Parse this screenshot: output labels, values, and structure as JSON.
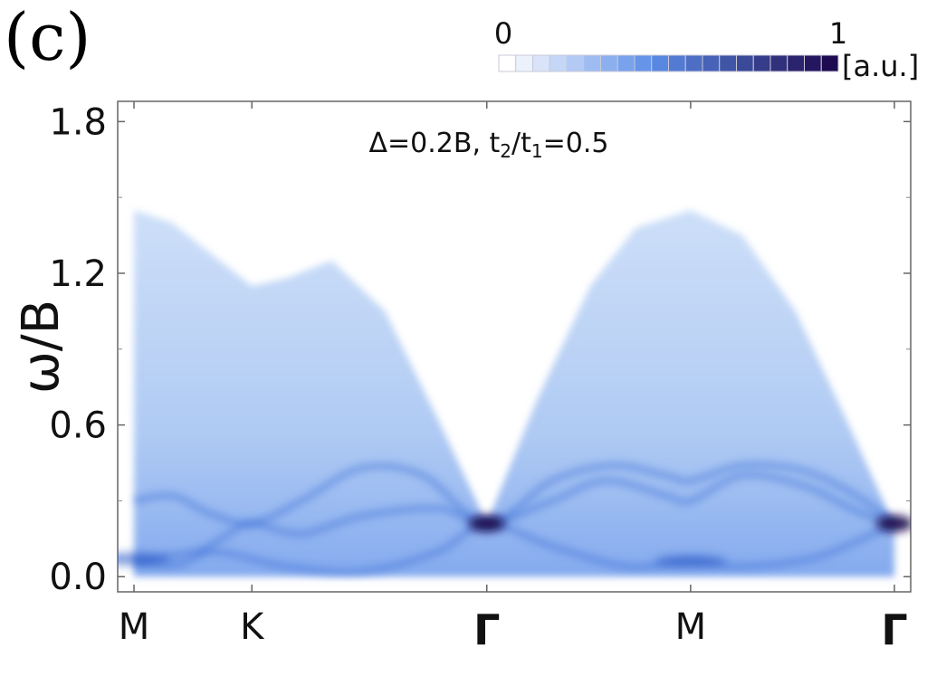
{
  "panel_label": "(c)",
  "chart_data": {
    "type": "heatmap",
    "title": "",
    "annotation_parts": [
      "Δ=0.2B, t",
      "2",
      "/t",
      "1",
      "=0.5"
    ],
    "ylabel": "ω/B",
    "xlabel": "",
    "ylim": [
      -0.06,
      1.88
    ],
    "yticks": [
      {
        "value": 0.0,
        "label": "0.0"
      },
      {
        "value": 0.6,
        "label": "0.6"
      },
      {
        "value": 1.2,
        "label": "1.2"
      },
      {
        "value": 1.8,
        "label": "1.8"
      }
    ],
    "x_path": [
      {
        "label": "M",
        "pos": 0.0
      },
      {
        "label": "K",
        "pos": 0.155
      },
      {
        "label": "Γ",
        "pos": 0.464
      },
      {
        "label": "M",
        "pos": 0.732
      },
      {
        "label": "Γ",
        "pos": 1.0
      }
    ],
    "colorbar": {
      "min_label": "0",
      "max_label": "1",
      "unit": "[a.u.]",
      "steps": 20
    },
    "colors": {
      "low": "#ffffff",
      "mid": "#5b8de8",
      "high": "#1e0a50"
    },
    "continuum_upper_edge": [
      [
        0.0,
        1.45
      ],
      [
        0.05,
        1.4
      ],
      [
        0.1,
        1.28
      ],
      [
        0.155,
        1.15
      ],
      [
        0.2,
        1.18
      ],
      [
        0.26,
        1.25
      ],
      [
        0.33,
        1.05
      ],
      [
        0.4,
        0.62
      ],
      [
        0.464,
        0.21
      ],
      [
        0.53,
        0.7
      ],
      [
        0.6,
        1.15
      ],
      [
        0.66,
        1.38
      ],
      [
        0.732,
        1.45
      ],
      [
        0.8,
        1.35
      ],
      [
        0.87,
        1.05
      ],
      [
        0.94,
        0.6
      ],
      [
        1.0,
        0.2
      ]
    ],
    "series": [
      {
        "values": [
          [
            0.0,
            0.07
          ],
          [
            0.06,
            0.05
          ],
          [
            0.12,
            0.16
          ],
          [
            0.155,
            0.21
          ],
          [
            0.22,
            0.17
          ],
          [
            0.3,
            0.24
          ],
          [
            0.4,
            0.27
          ],
          [
            0.464,
            0.21
          ],
          [
            0.55,
            0.3
          ],
          [
            0.62,
            0.38
          ],
          [
            0.7,
            0.32
          ],
          [
            0.732,
            0.3
          ],
          [
            0.8,
            0.4
          ],
          [
            0.88,
            0.36
          ],
          [
            0.95,
            0.26
          ],
          [
            1.0,
            0.21
          ]
        ]
      },
      {
        "values": [
          [
            0.0,
            0.3
          ],
          [
            0.05,
            0.32
          ],
          [
            0.1,
            0.25
          ],
          [
            0.155,
            0.21
          ],
          [
            0.22,
            0.3
          ],
          [
            0.3,
            0.43
          ],
          [
            0.38,
            0.4
          ],
          [
            0.464,
            0.21
          ],
          [
            0.55,
            0.38
          ],
          [
            0.63,
            0.44
          ],
          [
            0.7,
            0.4
          ],
          [
            0.732,
            0.38
          ],
          [
            0.8,
            0.44
          ],
          [
            0.88,
            0.42
          ],
          [
            0.95,
            0.32
          ],
          [
            1.0,
            0.21
          ]
        ]
      },
      {
        "values": [
          [
            0.0,
            0.05
          ],
          [
            0.1,
            0.1
          ],
          [
            0.2,
            0.04
          ],
          [
            0.3,
            0.02
          ],
          [
            0.4,
            0.1
          ],
          [
            0.464,
            0.21
          ],
          [
            0.55,
            0.12
          ],
          [
            0.65,
            0.04
          ],
          [
            0.732,
            0.06
          ],
          [
            0.8,
            0.04
          ],
          [
            0.9,
            0.08
          ],
          [
            1.0,
            0.21
          ]
        ]
      }
    ],
    "bright_spots": [
      {
        "x": 0.464,
        "y": 0.21
      },
      {
        "x": 1.0,
        "y": 0.21
      },
      {
        "x": 0.0,
        "y": 0.07
      },
      {
        "x": 0.732,
        "y": 0.06
      }
    ]
  }
}
